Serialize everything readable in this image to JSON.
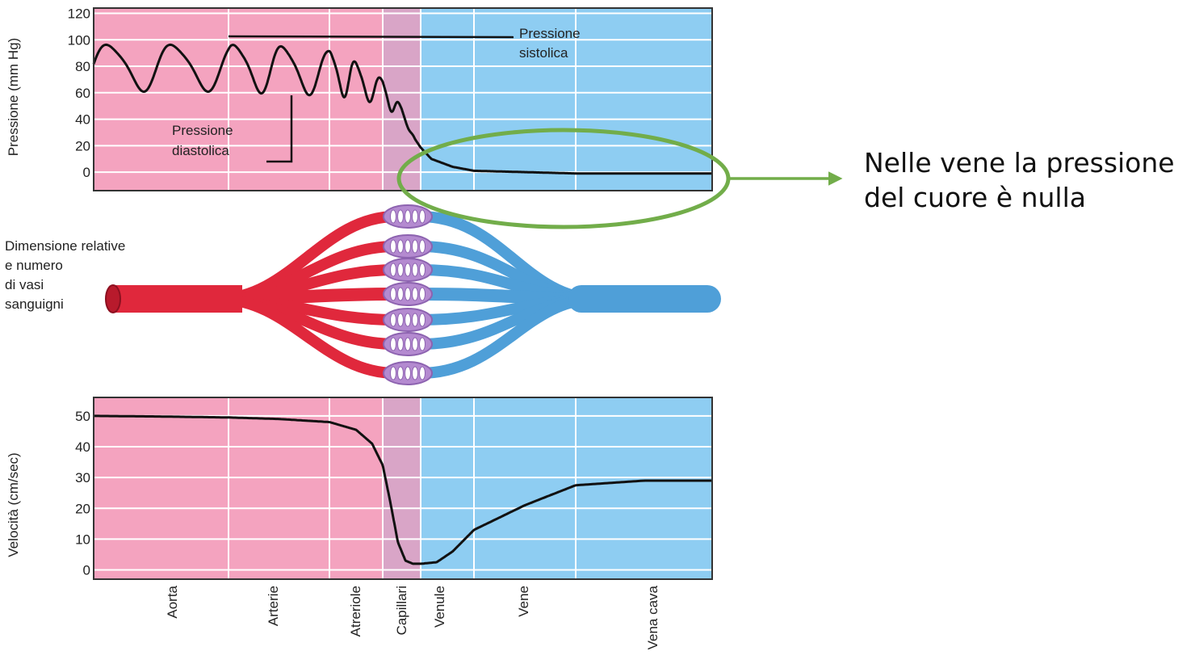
{
  "colors": {
    "arterial_bg": "#f4a3bf",
    "capillary_bg": "#d9a5c7",
    "venous_bg": "#8ecdf2",
    "artery_red": "#e0283c",
    "vein_blue": "#4f9fd8",
    "capillary_purple": "#b48ad0",
    "curve": "#111111",
    "highlight_green": "#72ad4a"
  },
  "segments": [
    "Aorta",
    "Arterie",
    "Atreriole",
    "Capillari",
    "Venule",
    "Vene",
    "Vena cava"
  ],
  "middle_label": [
    "Dimensione relative",
    "e numero",
    "di vasi",
    "sanguigni"
  ],
  "callout": {
    "lines": [
      "Nelle vene la pressione",
      "del cuore è nulla"
    ]
  },
  "chart_data": [
    {
      "type": "line",
      "ylabel": "Pressione  (mm Hg)",
      "yticks": [
        0,
        20,
        40,
        60,
        80,
        100,
        120
      ],
      "ylim": [
        -14,
        124
      ],
      "grid": true,
      "annotations": [
        {
          "lines": [
            "Pressione",
            "sistolica"
          ]
        },
        {
          "lines": [
            "Pressione",
            "diastolica"
          ]
        }
      ],
      "series": [
        {
          "values_description_only": "",
          "x": [
            0,
            0.5,
            1,
            1.5,
            2,
            2.5,
            3,
            3.5,
            3.85,
            4.2,
            4.6,
            5,
            5.5,
            6,
            6.5,
            7
          ],
          "y": [
            100,
            100,
            100,
            99,
            95,
            86,
            72,
            50,
            25,
            10,
            4,
            1,
            0,
            -1,
            -1,
            -1
          ],
          "oscillation_min": [
            60,
            60,
            60,
            58,
            57,
            55,
            50,
            40,
            25,
            10,
            4,
            1,
            0,
            -1,
            -1,
            -1
          ]
        }
      ]
    },
    {
      "type": "line",
      "ylabel": "Velocità  (cm/sec)",
      "yticks": [
        0,
        10,
        20,
        30,
        40,
        50
      ],
      "ylim": [
        -3,
        56
      ],
      "grid": true,
      "series": [
        {
          "x": [
            0,
            0.5,
            1,
            1.5,
            2,
            2.5,
            2.8,
            3,
            3.2,
            3.4,
            3.6,
            3.8,
            4,
            4.3,
            4.6,
            5,
            5.5,
            6,
            6.5,
            7
          ],
          "y": [
            50,
            49.8,
            49.5,
            49,
            48,
            45.5,
            41,
            34,
            22,
            9,
            3,
            2,
            2,
            2.5,
            6,
            13,
            21,
            27.5,
            29,
            29
          ]
        }
      ]
    }
  ]
}
